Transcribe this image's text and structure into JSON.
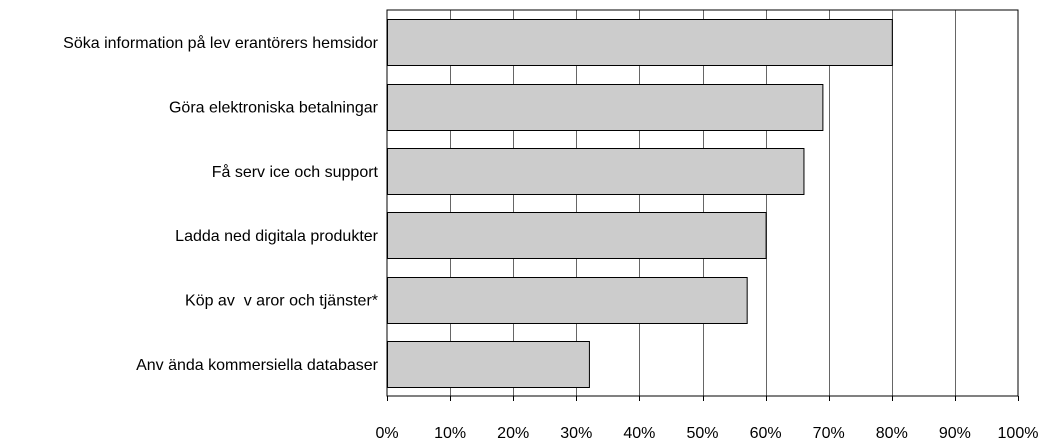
{
  "chart_data": {
    "type": "bar",
    "orientation": "horizontal",
    "categories": [
      "Söka information på lev erantörers hemsidor",
      "Göra elektroniska betalningar",
      "Få serv ice och support",
      "Ladda ned digitala produkter",
      "Köp av  v aror och tjänster*",
      "Anv ända kommersiella databaser"
    ],
    "values": [
      80,
      69,
      66,
      60,
      57,
      32
    ],
    "xlim": [
      0,
      100
    ],
    "x_ticks": [
      "0%",
      "10%",
      "20%",
      "30%",
      "40%",
      "50%",
      "60%",
      "70%",
      "80%",
      "90%",
      "100%"
    ],
    "x_tick_values": [
      0,
      10,
      20,
      30,
      40,
      50,
      60,
      70,
      80,
      90,
      100
    ],
    "grid": "vertical",
    "legend": "none",
    "colors": {
      "bar_fill": "#cccccc",
      "bar_stroke": "#000000",
      "grid": "#000000",
      "frame": "#000000"
    }
  }
}
